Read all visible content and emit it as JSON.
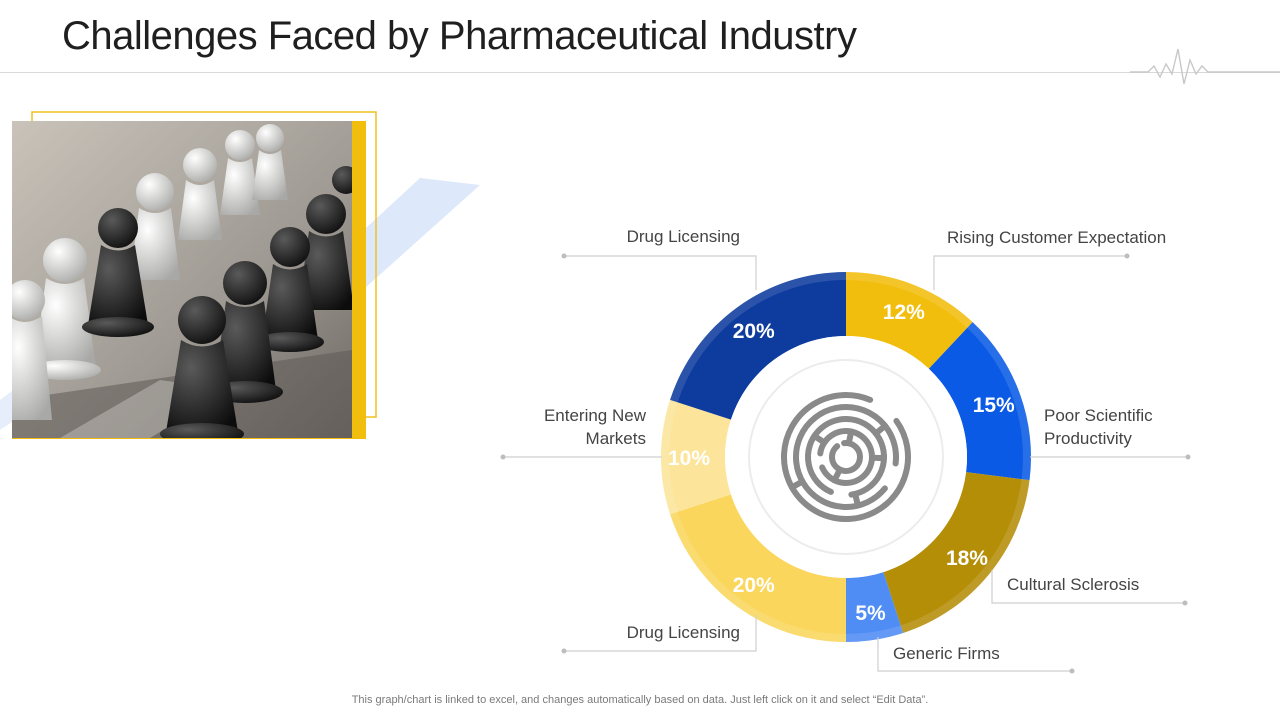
{
  "slide": {
    "title": "Challenges Faced by Pharmaceutical Industry",
    "footer": "This graph/chart is linked to excel,  and changes automatically based on data. Just left click on it and select “Edit Data”."
  },
  "chart_data": {
    "type": "pie",
    "variant": "donut",
    "center_icon": "maze-icon",
    "slices": [
      {
        "label": "Rising Customer Expectation",
        "value": 12,
        "value_label": "12%",
        "color": "#F2BE0E"
      },
      {
        "label": "Poor Scientific Productivity",
        "value": 15,
        "value_label": "15%",
        "color": "#0A5AE6"
      },
      {
        "label": "Cultural Sclerosis",
        "value": 18,
        "value_label": "18%",
        "color": "#B58E08"
      },
      {
        "label": "Generic Firms",
        "value": 5,
        "value_label": "5%",
        "color": "#4F8DF5"
      },
      {
        "label": "Drug Licensing",
        "value": 20,
        "value_label": "20%",
        "color": "#FAD65C"
      },
      {
        "label": "Entering New Markets",
        "value": 10,
        "value_label": "10%",
        "color": "#FCE59A"
      },
      {
        "label": "Drug Licensing",
        "value": 20,
        "value_label": "20%",
        "color": "#0D3C9E"
      }
    ]
  }
}
